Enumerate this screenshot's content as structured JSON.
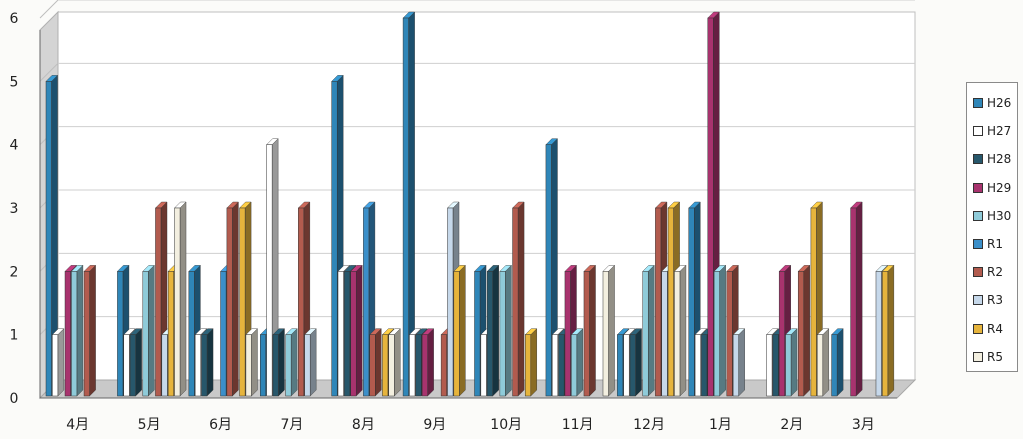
{
  "chart_data": {
    "type": "bar",
    "categories": [
      "4月",
      "5月",
      "6月",
      "7月",
      "8月",
      "9月",
      "10月",
      "11月",
      "12月",
      "1月",
      "2月",
      "3月"
    ],
    "series": [
      {
        "name": "H26",
        "color": "#2f86b8",
        "values": [
          5,
          2,
          2,
          1,
          5,
          6,
          2,
          4,
          1,
          3,
          0,
          1
        ]
      },
      {
        "name": "H27",
        "color": "#ffffff",
        "values": [
          1,
          1,
          1,
          4,
          2,
          1,
          1,
          1,
          1,
          1,
          1,
          0
        ]
      },
      {
        "name": "H28",
        "color": "#27576b",
        "values": [
          0,
          1,
          1,
          1,
          2,
          1,
          2,
          1,
          1,
          1,
          1,
          0
        ]
      },
      {
        "name": "H29",
        "color": "#a8336e",
        "values": [
          2,
          0,
          0,
          0,
          2,
          1,
          0,
          2,
          0,
          6,
          2,
          3
        ]
      },
      {
        "name": "H30",
        "color": "#8fcbd9",
        "values": [
          2,
          2,
          0,
          1,
          0,
          0,
          2,
          1,
          2,
          2,
          1,
          0
        ]
      },
      {
        "name": "R1",
        "color": "#3b8fc9",
        "values": [
          0,
          0,
          2,
          0,
          3,
          0,
          0,
          0,
          0,
          0,
          0,
          0
        ]
      },
      {
        "name": "R2",
        "color": "#b25b4e",
        "values": [
          2,
          3,
          3,
          3,
          1,
          1,
          3,
          2,
          3,
          2,
          2,
          0
        ]
      },
      {
        "name": "R3",
        "color": "#c6d8ea",
        "values": [
          0,
          1,
          0,
          1,
          0,
          3,
          0,
          0,
          2,
          1,
          0,
          2
        ]
      },
      {
        "name": "R4",
        "color": "#e6b43c",
        "values": [
          0,
          2,
          3,
          0,
          1,
          2,
          1,
          0,
          3,
          0,
          3,
          2
        ]
      },
      {
        "name": "R5",
        "color": "#f3efe0",
        "values": [
          0,
          3,
          1,
          0,
          1,
          0,
          0,
          2,
          2,
          0,
          1,
          0
        ]
      }
    ],
    "ylim": [
      0,
      6
    ],
    "yticks": [
      0,
      1,
      2,
      3,
      4,
      5,
      6
    ],
    "grid": true,
    "legend_position": "right",
    "title": "",
    "xlabel": "",
    "ylabel": ""
  }
}
